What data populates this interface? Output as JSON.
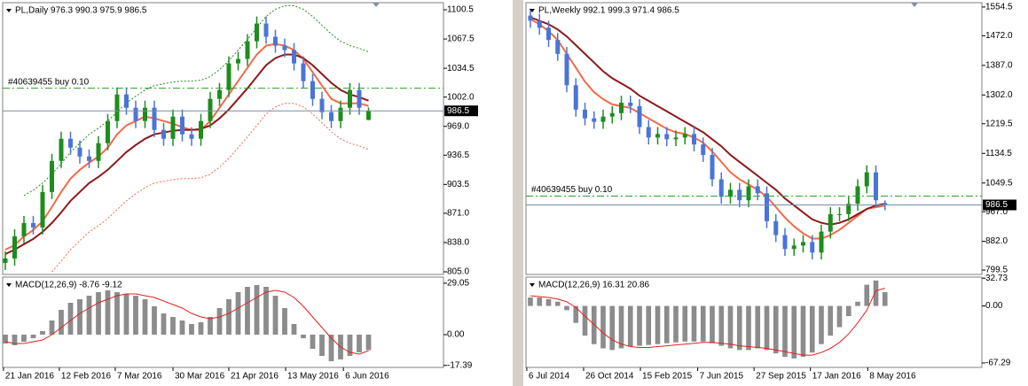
{
  "chart_data": [
    {
      "type": "ohlc",
      "title": "PL,Daily  976.3 990.3 975.9 986.5",
      "ylim": [
        802,
        1108.5
      ],
      "yticks": [
        {
          "value": 805,
          "label": "805.0"
        },
        {
          "value": 838,
          "label": "838.0"
        },
        {
          "value": 871,
          "label": "871.0"
        },
        {
          "value": 903.5,
          "label": "903.5"
        },
        {
          "value": 936.5,
          "label": "936.5"
        },
        {
          "value": 969,
          "label": "969.0"
        },
        {
          "value": 1002,
          "label": "1002.0"
        },
        {
          "value": 1034.5,
          "label": "1034.5"
        },
        {
          "value": 1067.5,
          "label": "1067.5"
        },
        {
          "value": 1100.5,
          "label": "1100.5"
        }
      ],
      "up_color": "#1e8c1e",
      "down_color": "#4a74d8",
      "open": [
        815,
        820,
        845,
        860,
        855,
        895,
        930,
        955,
        945,
        935,
        930,
        950,
        975,
        1005,
        990,
        975,
        990,
        965,
        955,
        980,
        960,
        955,
        975,
        1000,
        1010,
        1040,
        1045,
        1065,
        1085,
        1070,
        1060,
        1055,
        1040,
        1020,
        1000,
        985,
        975,
        990,
        1010,
        976.3
      ],
      "high": [
        828,
        853,
        868,
        868,
        903,
        938,
        963,
        963,
        953,
        943,
        958,
        983,
        1013,
        1013,
        998,
        998,
        998,
        973,
        988,
        988,
        968,
        983,
        1008,
        1018,
        1048,
        1053,
        1073,
        1093,
        1093,
        1078,
        1068,
        1063,
        1048,
        1028,
        1008,
        993,
        998,
        1018,
        1018,
        990.3
      ],
      "low": [
        807,
        812,
        837,
        847,
        847,
        887,
        922,
        937,
        927,
        922,
        922,
        942,
        967,
        982,
        967,
        967,
        957,
        947,
        947,
        952,
        947,
        947,
        967,
        992,
        1002,
        1032,
        1037,
        1057,
        1062,
        1052,
        1047,
        1032,
        1012,
        992,
        977,
        967,
        967,
        982,
        982,
        975.9
      ],
      "close": [
        820,
        845,
        860,
        855,
        895,
        930,
        955,
        945,
        935,
        930,
        950,
        975,
        1005,
        990,
        975,
        990,
        965,
        955,
        980,
        960,
        955,
        975,
        1000,
        1010,
        1040,
        1045,
        1065,
        1085,
        1070,
        1060,
        1055,
        1040,
        1020,
        1000,
        985,
        975,
        990,
        1010,
        990,
        986.5
      ],
      "lines": [
        {
          "color": "#f4694a",
          "style": "solid",
          "values": [
            830,
            835,
            845,
            852,
            862,
            878,
            895,
            910,
            920,
            928,
            935,
            945,
            960,
            970,
            975,
            980,
            978,
            975,
            972,
            968,
            965,
            965,
            975,
            990,
            1005,
            1020,
            1035,
            1050,
            1060,
            1062,
            1060,
            1055,
            1045,
            1030,
            1015,
            1000,
            995,
            995,
            995,
            992
          ]
        },
        {
          "color": "#8b1a1a",
          "style": "solid",
          "values": [
            825,
            830,
            836,
            842,
            850,
            860,
            872,
            885,
            895,
            905,
            912,
            920,
            930,
            940,
            948,
            955,
            960,
            962,
            964,
            965,
            965,
            966,
            970,
            978,
            988,
            1000,
            1012,
            1025,
            1038,
            1046,
            1050,
            1050,
            1046,
            1038,
            1028,
            1018,
            1010,
            1005,
            1002,
            998
          ]
        },
        {
          "color": "#1e8c1e",
          "style": "dotted",
          "values": [
            null,
            null,
            891,
            897,
            905,
            915,
            927,
            940,
            950,
            960,
            967,
            975,
            985,
            995,
            1003,
            1010,
            1015,
            1017,
            1019,
            1020,
            1020,
            1021,
            1025,
            1033,
            1043,
            1055,
            1067,
            1080,
            1093,
            1101,
            1105,
            1105,
            1101,
            1093,
            1083,
            1073,
            1065,
            1060,
            1057,
            1053
          ]
        },
        {
          "color": "#f4694a",
          "style": "dotted",
          "values": [
            null,
            null,
            null,
            null,
            null,
            805,
            817,
            830,
            840,
            850,
            857,
            865,
            875,
            885,
            893,
            900,
            905,
            907,
            909,
            910,
            910,
            911,
            915,
            923,
            933,
            945,
            957,
            970,
            983,
            991,
            995,
            995,
            991,
            983,
            973,
            963,
            955,
            950,
            947,
            943
          ]
        }
      ],
      "order_label": "#40639455 buy 0.10",
      "order_price": 1012,
      "order_color": "#2aa02a"
    },
    {
      "type": "macd",
      "title": "MACD(12,26,9) -8.76 -9.12",
      "ylim": [
        -18.5,
        32.5
      ],
      "yticks": [
        {
          "value": 29.05,
          "label": "29.05"
        },
        {
          "value": 0,
          "label": "0.00"
        },
        {
          "value": -17.39,
          "label": "-17.39"
        }
      ],
      "hist_color": "#8c8c8c",
      "signal_color": "#e02020",
      "histogram": [
        -5,
        -6,
        -4,
        -2,
        2,
        8,
        14,
        18,
        20,
        22,
        24,
        25,
        24,
        23,
        22,
        20,
        16,
        12,
        10,
        8,
        6,
        7,
        10,
        15,
        20,
        24,
        27,
        28,
        27,
        22,
        15,
        6,
        -2,
        -8,
        -12,
        -15,
        -14,
        -12,
        -10,
        -8.76
      ],
      "signal": [
        -4,
        -5,
        -5,
        -4,
        -3,
        0,
        4,
        8,
        12,
        15,
        18,
        20,
        22,
        23,
        23,
        22,
        21,
        19,
        17,
        15,
        12,
        10,
        9,
        10,
        12,
        15,
        18,
        21,
        24,
        25,
        24,
        21,
        16,
        10,
        4,
        -2,
        -7,
        -10,
        -11,
        -9.12
      ],
      "xticks": [
        {
          "value": -0.2,
          "label": "21 Jan 2016"
        },
        {
          "value": 5.8,
          "label": "12 Feb 2016"
        },
        {
          "value": 11.8,
          "label": "7 Mar 2016"
        },
        {
          "value": 18,
          "label": "30 Mar 2016"
        },
        {
          "value": 24,
          "label": "21 Apr 2016"
        },
        {
          "value": 30.1,
          "label": "13 May 2016"
        },
        {
          "value": 36.3,
          "label": "6 Jun 2016"
        }
      ]
    },
    {
      "type": "ohlc",
      "title": "PL,Weekly  992.1 999.3 971.4 986.5",
      "ylim": [
        787,
        1567
      ],
      "yticks": [
        {
          "value": 799.5,
          "label": "799.5"
        },
        {
          "value": 882,
          "label": "882.0"
        },
        {
          "value": 967,
          "label": "967.0"
        },
        {
          "value": 1049.5,
          "label": "1049.5"
        },
        {
          "value": 1134.5,
          "label": "1134.5"
        },
        {
          "value": 1219.5,
          "label": "1219.5"
        },
        {
          "value": 1302,
          "label": "1302.0"
        },
        {
          "value": 1387,
          "label": "1387.0"
        },
        {
          "value": 1472,
          "label": "1472.0"
        },
        {
          "value": 1554.5,
          "label": "1554.5"
        }
      ],
      "up_color": "#1e8c1e",
      "down_color": "#4a74d8",
      "open": [
        1530,
        1515,
        1495,
        1460,
        1420,
        1330,
        1260,
        1235,
        1225,
        1240,
        1250,
        1280,
        1270,
        1210,
        1180,
        1190,
        1175,
        1180,
        1190,
        1160,
        1130,
        1060,
        1010,
        1030,
        1000,
        1040,
        1020,
        940,
        900,
        860,
        870,
        880,
        850,
        910,
        960,
        960,
        990,
        1040,
        1080,
        992.1
      ],
      "high": [
        1550,
        1535,
        1515,
        1480,
        1440,
        1350,
        1280,
        1255,
        1260,
        1270,
        1300,
        1300,
        1290,
        1230,
        1210,
        1210,
        1200,
        1210,
        1210,
        1180,
        1150,
        1080,
        1050,
        1050,
        1060,
        1060,
        1040,
        960,
        920,
        890,
        900,
        900,
        930,
        980,
        980,
        1010,
        1060,
        1100,
        1100,
        999.3
      ],
      "low": [
        1495,
        1475,
        1440,
        1400,
        1310,
        1240,
        1215,
        1205,
        1205,
        1220,
        1230,
        1250,
        1190,
        1160,
        1160,
        1155,
        1155,
        1160,
        1140,
        1110,
        1040,
        990,
        990,
        980,
        980,
        1000,
        920,
        880,
        840,
        840,
        850,
        830,
        830,
        890,
        940,
        940,
        970,
        1020,
        980,
        971.4
      ],
      "close": [
        1515,
        1495,
        1460,
        1420,
        1330,
        1260,
        1235,
        1225,
        1240,
        1250,
        1280,
        1270,
        1210,
        1180,
        1190,
        1175,
        1180,
        1190,
        1160,
        1130,
        1060,
        1010,
        1030,
        1000,
        1040,
        1020,
        940,
        900,
        860,
        870,
        880,
        850,
        910,
        960,
        960,
        990,
        1040,
        1080,
        1000,
        986.5
      ],
      "lines": [
        {
          "color": "#f4694a",
          "style": "solid",
          "values": [
            1520,
            1505,
            1485,
            1460,
            1420,
            1380,
            1340,
            1310,
            1290,
            1275,
            1270,
            1265,
            1250,
            1235,
            1220,
            1205,
            1195,
            1190,
            1180,
            1165,
            1140,
            1110,
            1080,
            1060,
            1045,
            1030,
            1010,
            980,
            950,
            925,
            905,
            890,
            890,
            900,
            915,
            935,
            955,
            975,
            980,
            985
          ]
        },
        {
          "color": "#8b1a1a",
          "style": "solid",
          "values": [
            1525,
            1515,
            1505,
            1490,
            1470,
            1445,
            1420,
            1395,
            1370,
            1350,
            1335,
            1320,
            1300,
            1285,
            1270,
            1255,
            1240,
            1225,
            1210,
            1195,
            1175,
            1155,
            1130,
            1110,
            1090,
            1070,
            1050,
            1030,
            1005,
            985,
            965,
            945,
            935,
            930,
            935,
            945,
            960,
            975,
            985,
            990
          ]
        }
      ],
      "order_label": "#40639455 buy 0.10",
      "order_price": 1012,
      "order_color": "#2aa02a"
    },
    {
      "type": "macd",
      "title": "MACD(12,26,9) 16.31 20.86",
      "ylim": [
        -72.5,
        34
      ],
      "yticks": [
        {
          "value": 32.73,
          "label": "32.73"
        },
        {
          "value": 0,
          "label": "0.00"
        },
        {
          "value": -67.29,
          "label": "-67.29"
        }
      ],
      "hist_color": "#8c8c8c",
      "signal_color": "#e02020",
      "histogram": [
        10,
        10,
        8,
        5,
        -5,
        -20,
        -35,
        -45,
        -50,
        -52,
        -50,
        -48,
        -47,
        -46,
        -45,
        -44,
        -43,
        -42,
        -42,
        -42,
        -44,
        -47,
        -50,
        -52,
        -52,
        -50,
        -52,
        -56,
        -60,
        -62,
        -60,
        -55,
        -45,
        -35,
        -25,
        -12,
        5,
        25,
        30,
        16.31
      ],
      "signal": [
        12,
        11,
        10,
        8,
        5,
        -2,
        -12,
        -22,
        -32,
        -40,
        -45,
        -48,
        -49,
        -49,
        -48,
        -47,
        -46,
        -45,
        -44,
        -43,
        -43,
        -44,
        -45,
        -47,
        -48,
        -49,
        -50,
        -52,
        -54,
        -56,
        -58,
        -58,
        -55,
        -50,
        -43,
        -33,
        -20,
        -5,
        18,
        20.86
      ],
      "xticks": [
        {
          "value": -0.4,
          "label": "6 Jul 2014"
        },
        {
          "value": 5.85,
          "label": "26 Oct 2014"
        },
        {
          "value": 12.1,
          "label": "15 Feb 2015"
        },
        {
          "value": 18.4,
          "label": "7 Jun 2015"
        },
        {
          "value": 24.6,
          "label": "27 Sep 2015"
        },
        {
          "value": 30.8,
          "label": "17 Jan 2016"
        },
        {
          "value": 37.1,
          "label": "8 May 2016"
        }
      ]
    }
  ]
}
